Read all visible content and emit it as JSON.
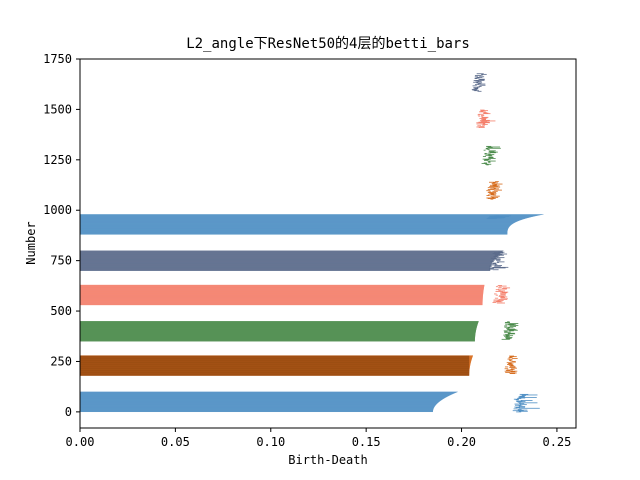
{
  "chart_data": {
    "type": "bar",
    "orientation": "horizontal",
    "title": "L2_angle下ResNet50的4层的betti_bars",
    "xlabel": "Birth-Death",
    "ylabel": "Number",
    "xlim": [
      0.0,
      0.26
    ],
    "ylim": [
      -80,
      1750
    ],
    "xticks": [
      0.0,
      0.05,
      0.1,
      0.15,
      0.2,
      0.25
    ],
    "xtick_labels": [
      "0.00",
      "0.05",
      "0.10",
      "0.15",
      "0.20",
      "0.25"
    ],
    "yticks": [
      0,
      250,
      500,
      750,
      1000,
      1250,
      1500,
      1750
    ],
    "ytick_labels": [
      "0",
      "250",
      "500",
      "750",
      "1000",
      "1250",
      "1500",
      "1750"
    ],
    "grid": false,
    "legend": "none",
    "series": [
      {
        "color": "#4f8fc4",
        "h0": {
          "y_start": 0,
          "y_end": 100,
          "start_len": 0.185,
          "end_len": 0.198
        },
        "h1": {
          "y_start": 0,
          "y_end": 90,
          "x_min": 0.228,
          "x_max": 0.24
        }
      },
      {
        "color": "#d66a1a",
        "h0": {
          "y_start": 180,
          "y_end": 280,
          "start_len": 0.204,
          "end_len": 0.206
        },
        "h1": {
          "y_start": 190,
          "y_end": 280,
          "x_min": 0.224,
          "x_max": 0.23
        }
      },
      {
        "color": "#4a8a4a",
        "h0": {
          "y_start": 350,
          "y_end": 450,
          "start_len": 0.207,
          "end_len": 0.209
        },
        "h1": {
          "y_start": 360,
          "y_end": 450,
          "x_min": 0.222,
          "x_max": 0.232
        }
      },
      {
        "color": "#f47f6b",
        "h0": {
          "y_start": 530,
          "y_end": 630,
          "start_len": 0.211,
          "end_len": 0.212
        },
        "h1": {
          "y_start": 540,
          "y_end": 630,
          "x_min": 0.218,
          "x_max": 0.226
        }
      },
      {
        "color": "#5a6a8a",
        "h0": {
          "y_start": 700,
          "y_end": 800,
          "start_len": 0.215,
          "end_len": 0.222
        },
        "h1": {
          "y_start": 705,
          "y_end": 795,
          "x_min": 0.216,
          "x_max": 0.224
        }
      },
      {
        "color": "#4f8fc4",
        "h0": {
          "y_start": 880,
          "y_end": 980,
          "start_len": 0.224,
          "end_len": 0.243
        },
        "h1": {
          "y_start": 960,
          "y_end": 975,
          "x_min": 0.215,
          "x_max": 0.224
        }
      },
      {
        "color": "#d66a1a",
        "h0": null,
        "h1": {
          "y_start": 1055,
          "y_end": 1145,
          "x_min": 0.214,
          "x_max": 0.222
        }
      },
      {
        "color": "#4a8a4a",
        "h0": null,
        "h1": {
          "y_start": 1225,
          "y_end": 1320,
          "x_min": 0.212,
          "x_max": 0.22
        }
      },
      {
        "color": "#f47f6b",
        "h0": null,
        "h1": {
          "y_start": 1410,
          "y_end": 1500,
          "x_min": 0.209,
          "x_max": 0.216
        }
      },
      {
        "color": "#5a6a8a",
        "h0": null,
        "h1": {
          "y_start": 1590,
          "y_end": 1680,
          "x_min": 0.207,
          "x_max": 0.213
        }
      }
    ]
  }
}
